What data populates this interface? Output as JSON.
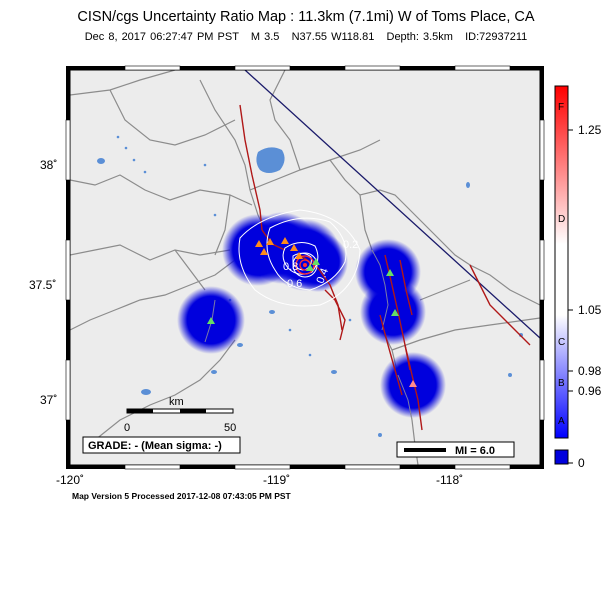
{
  "title": "CISN/cgs Uncertainty Ratio Map : 11.3km (7.1mi) W of Toms Place, CA",
  "event": {
    "datetime": "Dec  8, 2017 06:27:47 PM PST",
    "magnitude": "M 3.5",
    "location": "N37.55 W118.81",
    "depth": "Depth: 3.5km",
    "id": "ID:72937211"
  },
  "axes": {
    "lat_labels": [
      "38˚",
      "37.5˚",
      "37˚"
    ],
    "lon_labels": [
      "-120˚",
      "-119˚",
      "-118˚"
    ]
  },
  "contour_labels": [
    "0.2",
    "0.8",
    "0.6",
    "0.4"
  ],
  "scalebar": {
    "unit": "km",
    "start": "0",
    "end": "50"
  },
  "grade": "GRADE: - (Mean sigma: -)",
  "legend": {
    "mi_label": "MI = 6.0"
  },
  "colorbar": {
    "letters": [
      "F",
      "D",
      "C",
      "B",
      "A"
    ],
    "values": [
      "1.25",
      "1.05",
      "0.98",
      "0.96",
      "0"
    ]
  },
  "footer": "Map Version 5 Processed 2017-12-08 07:43:05 PM PST",
  "colors": {
    "land": "#ececec",
    "uncertainty_blue": "#0000dd",
    "fault": "#b01818",
    "lake": "#5b8fd6",
    "state_border": "#1a1a6a"
  }
}
